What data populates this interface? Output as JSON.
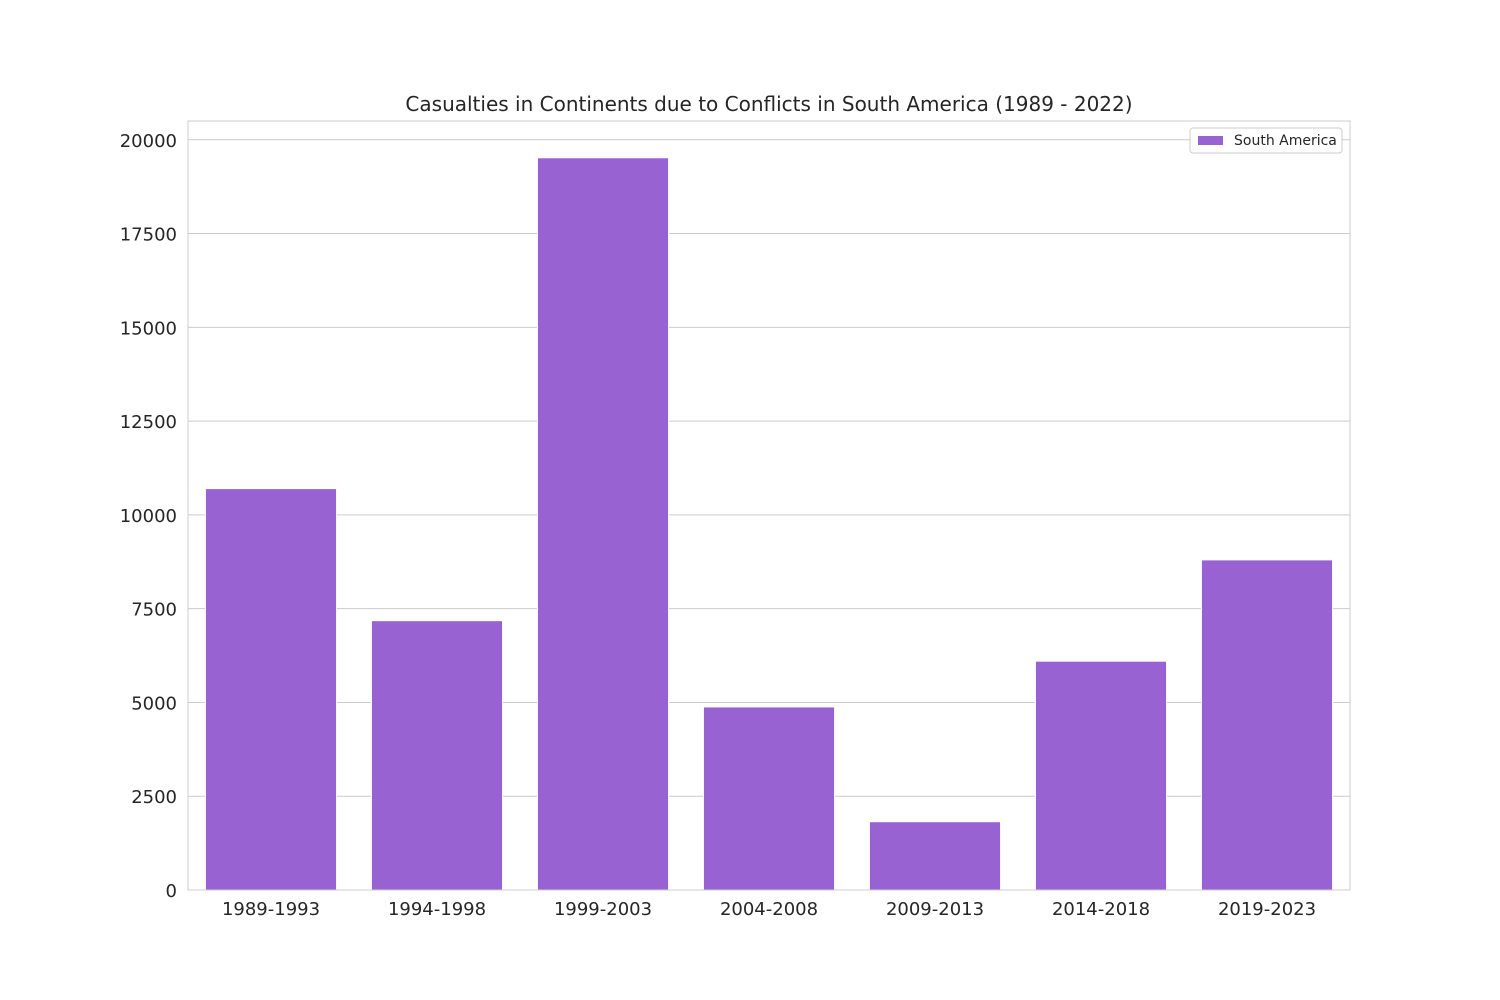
{
  "chart_data": {
    "type": "bar",
    "title": "Casualties in Continents due to Conflicts in South America (1989 - 2022)",
    "xlabel": "",
    "ylabel": "",
    "categories": [
      "1989-1993",
      "1994-1998",
      "1999-2003",
      "2004-2008",
      "2009-2013",
      "2014-2018",
      "2019-2023"
    ],
    "series": [
      {
        "name": "South America",
        "values": [
          10700,
          7180,
          19520,
          4880,
          1820,
          6100,
          8800
        ],
        "color": "#9862d3"
      }
    ],
    "ylim": [
      0,
      20500
    ],
    "yticks": [
      "0",
      "2500",
      "5000",
      "7500",
      "10000",
      "12500",
      "15000",
      "17500",
      "20000"
    ],
    "grid": true,
    "legend_position": "top-right"
  }
}
